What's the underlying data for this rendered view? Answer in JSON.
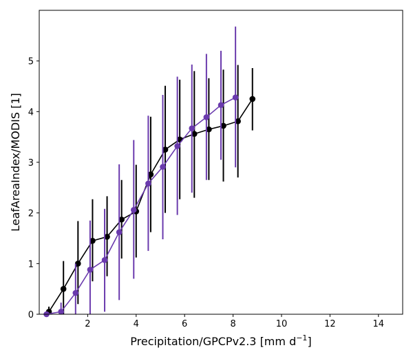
{
  "chart_data": {
    "type": "line",
    "title": "",
    "xlabel": "Precipitation/GPCPv2.3 [mm d",
    "xlabel_sup": "−1",
    "xlabel_suffix": "]",
    "ylabel": "LeafAreaIndex/MODIS [1]",
    "xlim": [
      0,
      15
    ],
    "ylim": [
      0,
      6
    ],
    "xticks": [
      2,
      4,
      6,
      8,
      10,
      12,
      14
    ],
    "yticks": [
      0,
      1,
      2,
      3,
      4,
      5
    ],
    "grid": false,
    "series": [
      {
        "color": "#000000",
        "x": [
          0.4,
          1.0,
          1.6,
          2.2,
          2.8,
          3.4,
          4.0,
          4.6,
          5.2,
          5.8,
          6.4,
          7.0,
          7.6,
          8.2,
          8.8
        ],
        "y": [
          0.05,
          0.5,
          1.0,
          1.45,
          1.53,
          1.87,
          2.03,
          2.76,
          3.25,
          3.45,
          3.56,
          3.65,
          3.72,
          3.81,
          4.25
        ],
        "err_low": [
          0.0,
          0.0,
          0.2,
          0.65,
          0.75,
          1.1,
          1.12,
          1.62,
          2.0,
          2.27,
          2.3,
          2.65,
          2.62,
          2.7,
          3.63
        ],
        "err_high": [
          0.15,
          1.05,
          1.84,
          2.27,
          2.33,
          2.65,
          2.95,
          3.9,
          4.51,
          4.63,
          4.8,
          4.66,
          4.83,
          4.92,
          4.86
        ]
      },
      {
        "color": "#6a3aad",
        "x": [
          0.3,
          0.9,
          1.5,
          2.1,
          2.7,
          3.3,
          3.9,
          4.5,
          5.1,
          5.7,
          6.3,
          6.9,
          7.5,
          8.1
        ],
        "y": [
          0.0,
          0.05,
          0.42,
          0.88,
          1.07,
          1.62,
          2.06,
          2.58,
          2.91,
          3.32,
          3.67,
          3.89,
          4.13,
          4.28
        ],
        "err_low": [
          0.0,
          0.0,
          0.0,
          0.0,
          0.05,
          0.28,
          0.7,
          1.25,
          1.48,
          1.96,
          2.4,
          2.65,
          3.05,
          2.9
        ],
        "err_high": [
          0.02,
          0.23,
          1.0,
          1.85,
          2.08,
          2.96,
          3.44,
          3.92,
          4.33,
          4.69,
          4.93,
          5.14,
          5.2,
          5.68
        ]
      }
    ]
  }
}
